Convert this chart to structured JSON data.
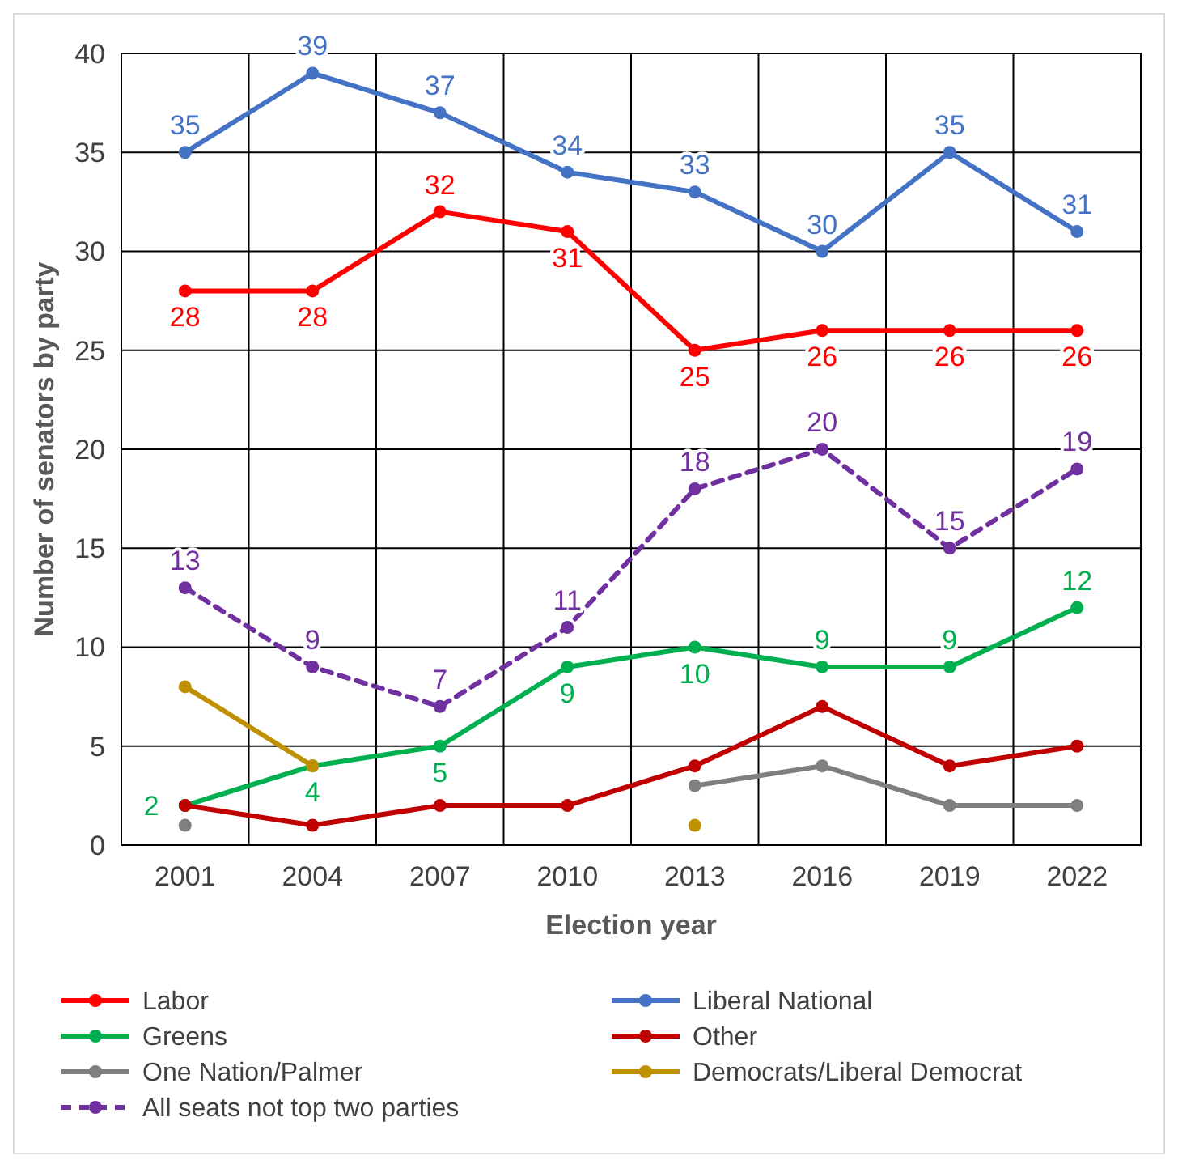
{
  "chart_data": {
    "type": "line",
    "xlabel": "Election year",
    "ylabel": "Number of senators by party",
    "categories": [
      "2001",
      "2004",
      "2007",
      "2010",
      "2013",
      "2016",
      "2019",
      "2022"
    ],
    "ylim": [
      0,
      40
    ],
    "yticks": [
      0,
      5,
      10,
      15,
      20,
      25,
      30,
      35,
      40
    ],
    "grid": true,
    "legend": "bottom",
    "marker": "circle",
    "series": [
      {
        "name": "Labor",
        "color": "#ff0000",
        "values": [
          28,
          28,
          32,
          31,
          25,
          26,
          26,
          26
        ],
        "value_labels": [
          "28",
          "28",
          "32",
          "31",
          "25",
          "26",
          "26",
          "26"
        ]
      },
      {
        "name": "Liberal National",
        "color": "#4472c4",
        "values": [
          35,
          39,
          37,
          34,
          33,
          30,
          35,
          31
        ],
        "value_labels": [
          "35",
          "39",
          "37",
          "34",
          "33",
          "30",
          "35",
          "31"
        ]
      },
      {
        "name": "Greens",
        "color": "#00b050",
        "values": [
          2,
          4,
          5,
          9,
          10,
          9,
          9,
          12
        ],
        "value_labels": [
          "2",
          "4",
          "5",
          "9",
          "10",
          "9",
          "9",
          "12"
        ]
      },
      {
        "name": "Other",
        "color": "#c00000",
        "values": [
          2,
          1,
          2,
          2,
          4,
          7,
          4,
          5
        ]
      },
      {
        "name": "One Nation/Palmer",
        "color": "#7f7f7f",
        "values": [
          1,
          null,
          null,
          null,
          3,
          4,
          2,
          2
        ]
      },
      {
        "name": "Democrats/Liberal Democrat",
        "color": "#bf9000",
        "values": [
          8,
          4,
          null,
          null,
          1,
          null,
          null,
          null
        ]
      },
      {
        "name": "All seats not top two parties",
        "color": "#7030a0",
        "line_style": "dashed",
        "values": [
          13,
          9,
          7,
          11,
          18,
          20,
          15,
          19
        ],
        "value_labels": [
          "13",
          "9",
          "7",
          "11",
          "18",
          "20",
          "15",
          "19"
        ]
      }
    ]
  }
}
